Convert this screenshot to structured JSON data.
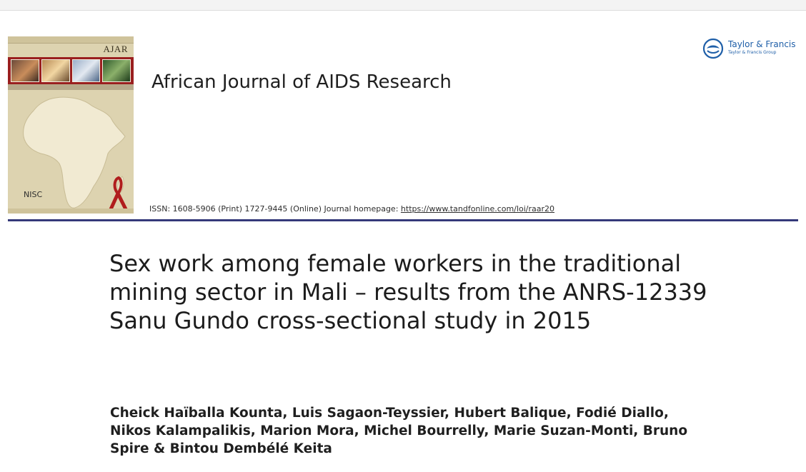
{
  "journal": {
    "cover": {
      "code": "AJAR",
      "logo": "NISC",
      "photos": [
        "cover-photo-1",
        "cover-photo-2",
        "cover-photo-3",
        "cover-photo-4"
      ]
    },
    "name": "African Journal of AIDS Research",
    "issn_prefix": "ISSN: 1608-5906 (Print) 1727-9445 (Online) Journal homepage: ",
    "homepage_url": "https://www.tandfonline.com/loi/raar20"
  },
  "publisher": {
    "name": "Taylor & Francis",
    "sub": "Taylor & Francis Group",
    "icon": "taylor-francis-logo-icon",
    "color": "#1f5fa8"
  },
  "colors": {
    "rule": "#34397a",
    "cover_band": "#9a1f1f",
    "cover_bg": "#ddd3b0"
  },
  "article": {
    "title": "Sex work among female workers in the traditional mining sector in Mali – results from the ANRS-12339 Sanu Gundo cross-sectional study in 2015",
    "authors": "Cheick Haïballa Kounta, Luis Sagaon-Teyssier, Hubert Balique, Fodié Diallo, Nikos Kalampalikis, Marion Mora, Michel Bourrelly, Marie Suzan-Monti, Bruno Spire & Bintou Dembélé Keita"
  }
}
